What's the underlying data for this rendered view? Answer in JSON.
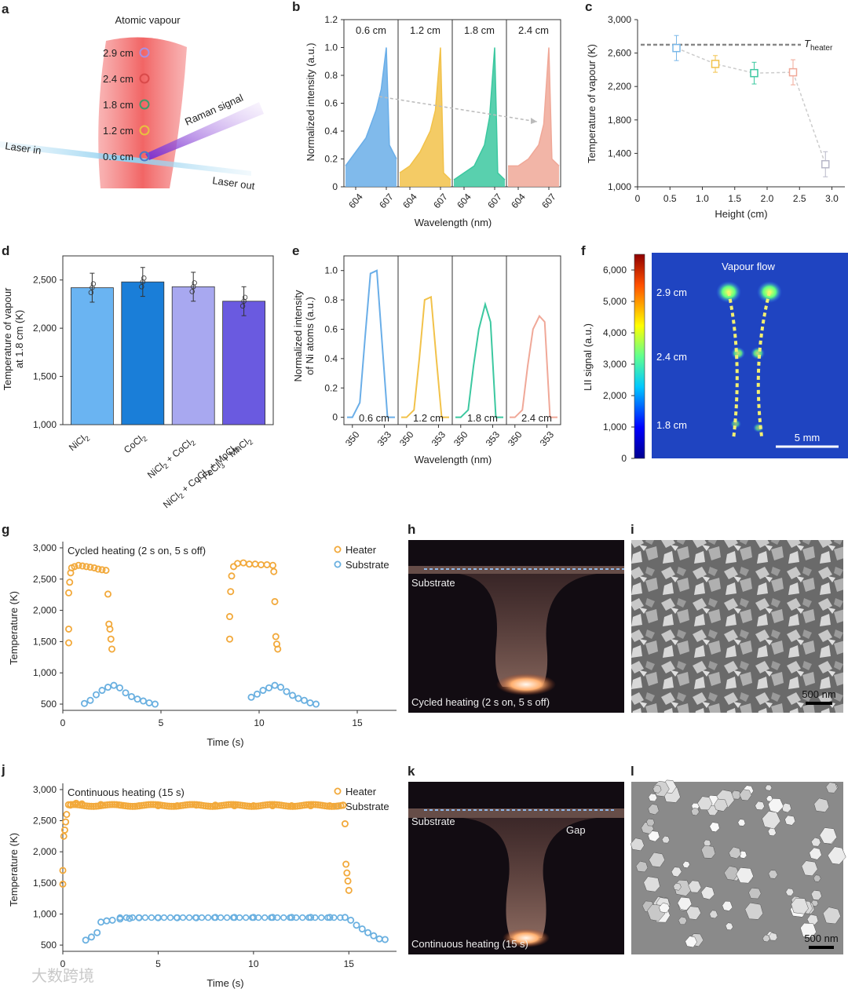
{
  "panels": {
    "a": {
      "letter": "a",
      "title": "Atomic vapour",
      "heights": [
        "2.9 cm",
        "2.4 cm",
        "1.8 cm",
        "1.2 cm",
        "0.6 cm"
      ],
      "ring_colors": [
        "#a98fe0",
        "#d94a4a",
        "#3f9a6a",
        "#e8c040",
        "#4a7ac8"
      ],
      "laser_in": "Laser in",
      "laser_out": "Laser out",
      "raman": "Raman signal"
    },
    "b": {
      "letter": "b",
      "titles": [
        "0.6 cm",
        "1.2 cm",
        "1.8 cm",
        "2.4 cm"
      ],
      "colors": [
        "#6aaee8",
        "#f2c24a",
        "#3cc8a0",
        "#f0a898"
      ],
      "ylabel": "Normalized intensity (a.u.)",
      "xlabel": "Wavelength (nm)",
      "yticks": [
        "0",
        "0.2",
        "0.4",
        "0.6",
        "0.8",
        "1.0",
        "1.2"
      ],
      "xticks": [
        "604",
        "607"
      ]
    },
    "c": {
      "letter": "c",
      "theater_main": "T",
      "theater_sub": "heater",
      "ylabel": "Temperature of vapour (K)",
      "xlabel": "Height (cm)",
      "yticks": [
        "1,000",
        "1,400",
        "1,800",
        "2,200",
        "2,600",
        "3,000"
      ],
      "xticks": [
        "0",
        "0.5",
        "1.0",
        "1.5",
        "2.0",
        "2.5",
        "3.0"
      ]
    },
    "d": {
      "letter": "d",
      "ylabel1": "Temperature of vapour",
      "ylabel2": "at 1.8 cm (K)",
      "yticks": [
        "1,000",
        "1,500",
        "2,000",
        "2,500"
      ],
      "categories": [
        "NiCl2",
        "CoCl2",
        "NiCl2 + CoCl2",
        "NiCl2 + CoCl2 + MoCl5 + FeCl3 + MnCl2"
      ],
      "colors": [
        "#6ab4f2",
        "#1a7ed8",
        "#a8a8f0",
        "#6a5ae0"
      ]
    },
    "e": {
      "letter": "e",
      "ylabel1": "Normalized intensity",
      "ylabel2": "of Ni atoms (a.u.)",
      "xlabel": "Wavelength (nm)",
      "titles": [
        "0.6 cm",
        "1.2 cm",
        "1.8 cm",
        "2.4 cm"
      ],
      "yticks": [
        "0",
        "0.2",
        "0.4",
        "0.6",
        "0.8",
        "1.0"
      ],
      "xticks": [
        "350",
        "353"
      ]
    },
    "f": {
      "letter": "f",
      "title": "Vapour flow",
      "ylabel": "LII signal (a.u.)",
      "cbar_ticks": [
        "0",
        "1,000",
        "2,000",
        "3,000",
        "4,000",
        "5,000",
        "6,000"
      ],
      "heights": [
        "2.9 cm",
        "2.4 cm",
        "1.8 cm"
      ],
      "scale": "5 mm"
    },
    "g": {
      "letter": "g",
      "title": "Cycled heating (2 s on, 5 s off)",
      "legend": [
        "Heater",
        "Substrate"
      ],
      "ylabel": "Temperature (K)",
      "xlabel": "Time (s)",
      "yticks": [
        "500",
        "1,000",
        "1,500",
        "2,000",
        "2,500",
        "3,000"
      ],
      "xticks": [
        "0",
        "5",
        "10",
        "15"
      ]
    },
    "h": {
      "letter": "h",
      "substrate": "Substrate",
      "caption": "Cycled heating (2 s on, 5 s off)"
    },
    "i": {
      "letter": "i",
      "scale": "500 nm"
    },
    "j": {
      "letter": "j",
      "title": "Continuous heating (15 s)",
      "legend": [
        "Heater",
        "Substrate"
      ],
      "ylabel": "Temperature (K)",
      "xlabel": "Time (s)",
      "yticks": [
        "500",
        "1,000",
        "1,500",
        "2,000",
        "2,500",
        "3,000"
      ],
      "xticks": [
        "0",
        "5",
        "10",
        "15"
      ]
    },
    "k": {
      "letter": "k",
      "substrate": "Substrate",
      "gap": "Gap",
      "caption": "Continuous heating (15 s)"
    },
    "l": {
      "letter": "l",
      "scale": "500 nm"
    }
  },
  "watermark": "大数跨境",
  "colors": {
    "heater": "#f2a93b",
    "substrate": "#6ab0e0"
  },
  "chart_data": [
    {
      "type": "line",
      "panel": "b",
      "xlabel": "Wavelength (nm)",
      "ylabel": "Normalized intensity (a.u.)",
      "ylim": [
        0,
        1.2
      ],
      "series": [
        {
          "name": "0.6 cm",
          "x": [
            603,
            604,
            605,
            606,
            606.5,
            607,
            607.3,
            608
          ],
          "values": [
            0.15,
            0.25,
            0.35,
            0.55,
            0.7,
            1.0,
            0.3,
            0.2
          ]
        },
        {
          "name": "1.2 cm",
          "x": [
            603,
            604,
            605,
            606,
            606.5,
            607,
            607.3,
            608
          ],
          "values": [
            0.1,
            0.15,
            0.25,
            0.4,
            0.55,
            1.0,
            0.1,
            0.05
          ]
        },
        {
          "name": "1.8 cm",
          "x": [
            603,
            604,
            605,
            606,
            606.5,
            607,
            607.3,
            608
          ],
          "values": [
            0.05,
            0.1,
            0.15,
            0.3,
            0.5,
            1.0,
            0.1,
            0.05
          ]
        },
        {
          "name": "2.4 cm",
          "x": [
            603,
            604,
            605,
            606,
            606.5,
            607,
            607.3,
            608
          ],
          "values": [
            0.15,
            0.15,
            0.2,
            0.3,
            0.45,
            1.0,
            0.2,
            0.15
          ]
        }
      ]
    },
    {
      "type": "scatter",
      "panel": "c",
      "xlabel": "Height (cm)",
      "ylabel": "Temperature of vapour (K)",
      "xlim": [
        0,
        3.2
      ],
      "ylim": [
        1000,
        3000
      ],
      "theater": 2700,
      "x": [
        0.6,
        1.2,
        1.8,
        2.4,
        2.9
      ],
      "values": [
        2660,
        2470,
        2360,
        2370,
        1270
      ],
      "errors": [
        150,
        100,
        130,
        150,
        150
      ],
      "colors": [
        "#7ab8e8",
        "#f2c24a",
        "#3cc8a0",
        "#f0a898",
        "#b8b8c8"
      ]
    },
    {
      "type": "bar",
      "panel": "d",
      "categories": [
        "NiCl2",
        "CoCl2",
        "NiCl2 + CoCl2",
        "NiCl2 + CoCl2 + MoCl5 + FeCl3 + MnCl2"
      ],
      "values": [
        2420,
        2480,
        2430,
        2280
      ],
      "errors": [
        150,
        150,
        150,
        150
      ],
      "ylim": [
        1000,
        2750
      ],
      "ylabel": "Temperature of vapour at 1.8 cm (K)"
    },
    {
      "type": "line",
      "panel": "e",
      "xlabel": "Wavelength (nm)",
      "ylabel": "Normalized intensity of Ni atoms (a.u.)",
      "ylim": [
        -0.05,
        1.1
      ],
      "series": [
        {
          "name": "0.6 cm",
          "x": [
            349.5,
            350,
            350.7,
            351.2,
            351.7,
            352.3,
            352.8,
            353.3,
            354
          ],
          "values": [
            0,
            0,
            0.1,
            0.55,
            0.98,
            1.0,
            0.5,
            0,
            0
          ]
        },
        {
          "name": "1.2 cm",
          "x": [
            349.5,
            350,
            350.7,
            351.2,
            351.7,
            352.3,
            352.8,
            353.3,
            354
          ],
          "values": [
            0,
            0,
            0.05,
            0.4,
            0.8,
            0.82,
            0.4,
            0,
            0
          ]
        },
        {
          "name": "1.8 cm",
          "x": [
            349.5,
            350,
            350.7,
            351.2,
            351.7,
            352.3,
            352.8,
            353.3,
            354
          ],
          "values": [
            0,
            0,
            0.05,
            0.35,
            0.6,
            0.77,
            0.65,
            0,
            0
          ]
        },
        {
          "name": "2.4 cm",
          "x": [
            349.5,
            350,
            350.7,
            351.2,
            351.7,
            352.3,
            352.8,
            353.3,
            354
          ],
          "values": [
            0,
            0,
            0.05,
            0.35,
            0.6,
            0.69,
            0.65,
            0,
            0
          ]
        }
      ]
    },
    {
      "type": "scatter",
      "panel": "g",
      "title": "Cycled heating (2 s on, 5 s off)",
      "xlabel": "Time (s)",
      "ylabel": "Temperature (K)",
      "xlim": [
        0,
        17
      ],
      "ylim": [
        400,
        3100
      ],
      "series": [
        {
          "name": "Heater",
          "x": [
            0.3,
            0.3,
            0.3,
            0.35,
            0.4,
            0.45,
            0.6,
            0.8,
            1.0,
            1.2,
            1.4,
            1.6,
            1.8,
            2.0,
            2.2,
            2.3,
            2.35,
            2.4,
            2.45,
            2.5,
            8.5,
            8.5,
            8.55,
            8.6,
            8.7,
            8.9,
            9.2,
            9.5,
            9.8,
            10.1,
            10.4,
            10.7,
            10.75,
            10.8,
            10.85,
            10.9,
            10.95
          ],
          "values": [
            1480,
            1700,
            2280,
            2450,
            2600,
            2680,
            2700,
            2720,
            2710,
            2700,
            2690,
            2680,
            2660,
            2650,
            2640,
            2260,
            1780,
            1700,
            1540,
            1380,
            1540,
            1900,
            2300,
            2550,
            2700,
            2750,
            2760,
            2740,
            2740,
            2730,
            2730,
            2720,
            2620,
            2140,
            1580,
            1460,
            1380
          ]
        },
        {
          "name": "Substrate",
          "x": [
            1.1,
            1.4,
            1.7,
            2.0,
            2.3,
            2.6,
            2.9,
            3.2,
            3.5,
            3.8,
            4.1,
            4.4,
            4.7,
            9.6,
            9.9,
            10.2,
            10.5,
            10.8,
            11.1,
            11.4,
            11.7,
            12.0,
            12.3,
            12.6,
            12.9
          ],
          "values": [
            510,
            560,
            650,
            720,
            770,
            800,
            760,
            680,
            620,
            580,
            550,
            520,
            500,
            610,
            660,
            720,
            760,
            800,
            770,
            700,
            640,
            590,
            560,
            520,
            500
          ]
        }
      ]
    },
    {
      "type": "scatter",
      "panel": "j",
      "title": "Continuous heating (15 s)",
      "xlabel": "Time (s)",
      "ylabel": "Temperature (K)",
      "xlim": [
        0,
        17.5
      ],
      "ylim": [
        400,
        3100
      ],
      "series": [
        {
          "name": "Heater",
          "x": [
            0,
            0,
            0.05,
            0.1,
            0.15,
            0.2,
            0.4,
            0.7,
            1,
            2,
            3,
            4,
            5,
            6,
            7,
            8,
            9,
            10,
            11,
            12,
            13,
            14,
            14.7,
            14.8,
            14.85,
            14.9,
            14.95,
            15.0
          ],
          "values": [
            1480,
            1700,
            2250,
            2350,
            2480,
            2600,
            2750,
            2780,
            2770,
            2760,
            2750,
            2740,
            2740,
            2740,
            2750,
            2750,
            2740,
            2740,
            2740,
            2740,
            2740,
            2740,
            2750,
            2450,
            1800,
            1660,
            1530,
            1380
          ]
        },
        {
          "name": "Substrate",
          "x": [
            1.2,
            1.5,
            1.8,
            2.0,
            2.3,
            2.6,
            3.0,
            3.5,
            4,
            5,
            6,
            7,
            8,
            9,
            10,
            11,
            12,
            13,
            14,
            14.8,
            15.1,
            15.4,
            15.7,
            16.0,
            16.3,
            16.6,
            16.9
          ],
          "values": [
            580,
            630,
            700,
            870,
            890,
            900,
            920,
            930,
            940,
            940,
            940,
            940,
            945,
            945,
            945,
            945,
            945,
            945,
            945,
            945,
            900,
            820,
            760,
            700,
            650,
            600,
            590
          ]
        }
      ]
    }
  ]
}
